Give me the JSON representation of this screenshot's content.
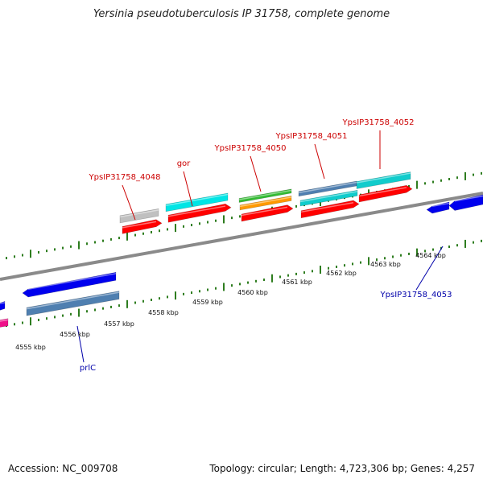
{
  "title": "Yersinia pseudotuberculosis IP 31758, complete genome",
  "accession_text": "Accession: NC_009708",
  "summary_text": "Topology: circular; Length: 4,723,306 bp; Genes: 4,257",
  "colors": {
    "backbone": "#8a8a8a",
    "tick": "#2e7d1f",
    "label_top": "#cc0000",
    "label_bottom": "#0000aa"
  },
  "scale": {
    "kbp_ticks": [
      "4555 kbp",
      "4556 kbp",
      "4557 kbp",
      "4558 kbp",
      "4559 kbp",
      "4560 kbp",
      "4561 kbp",
      "4562 kbp",
      "4563 kbp",
      "4564 kbp"
    ]
  },
  "gene_labels": [
    {
      "text": "YpsIP31758_4048",
      "side": "top"
    },
    {
      "text": "gor",
      "side": "top"
    },
    {
      "text": "YpsIP31758_4050",
      "side": "top"
    },
    {
      "text": "YpsIP31758_4051",
      "side": "top"
    },
    {
      "text": "YpsIP31758_4052",
      "side": "top"
    },
    {
      "text": "prlC",
      "side": "bottom"
    },
    {
      "text": "YpsIP31758_4053",
      "side": "bottom"
    }
  ],
  "features": [
    {
      "color": "#c0c0c0"
    },
    {
      "color": "#ff0000"
    },
    {
      "color": "#00e5e5"
    },
    {
      "color": "#ff0000"
    },
    {
      "color": "#33bb33"
    },
    {
      "color": "#ff9900"
    },
    {
      "color": "#ff0000"
    },
    {
      "color": "#4f7fb0"
    },
    {
      "color": "#11cccc"
    },
    {
      "color": "#ff0000"
    },
    {
      "color": "#11cccc"
    },
    {
      "color": "#ff0000"
    },
    {
      "color": "#0000ee"
    },
    {
      "color": "#0000ee"
    },
    {
      "color": "#0000ee"
    },
    {
      "color": "#4f7fb0"
    },
    {
      "color": "#0000ee"
    },
    {
      "color": "#ee1188"
    }
  ]
}
